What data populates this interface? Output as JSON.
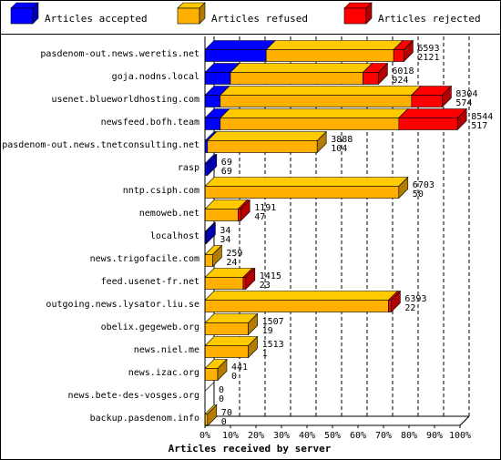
{
  "chart_data": {
    "type": "bar",
    "orientation": "horizontal",
    "stacked": true,
    "legend_position": "top",
    "xlabel": "Articles received by server",
    "x_tick_labels": [
      "0%",
      "10%",
      "20%",
      "30%",
      "40%",
      "50%",
      "60%",
      "70%",
      "80%",
      "90%",
      "100%"
    ],
    "xlim": [
      0,
      100
    ],
    "grid": true,
    "series": [
      {
        "name": "Articles accepted",
        "color": "#0000ff"
      },
      {
        "name": "Articles refused",
        "color": "#ffb000"
      },
      {
        "name": "Articles rejected",
        "color": "#ff0000"
      }
    ],
    "categories": [
      "pasdenom-out.news.weretis.net",
      "goja.nodns.local",
      "usenet.blueworldhosting.com",
      "newsfeed.bofh.team",
      "pasdenom-out.news.tnetconsulting.net",
      "rasp",
      "nntp.csiph.com",
      "nemoweb.net",
      "localhost",
      "news.trigofacile.com",
      "feed.usenet-fr.net",
      "outgoing.news.lysator.liu.se",
      "obelix.gegeweb.org",
      "news.niel.me",
      "news.izac.org",
      "news.bete-des-vosges.org",
      "backup.pasdenom.info"
    ],
    "rows": [
      {
        "total": "6593",
        "second": "2121",
        "accepted": 24,
        "refused": 50,
        "rejected": 4
      },
      {
        "total": "6018",
        "second": "924",
        "accepted": 10,
        "refused": 52,
        "rejected": 6
      },
      {
        "total": "8304",
        "second": "574",
        "accepted": 6,
        "refused": 75,
        "rejected": 12
      },
      {
        "total": "8544",
        "second": "517",
        "accepted": 6,
        "refused": 70,
        "rejected": 23
      },
      {
        "total": "3888",
        "second": "104",
        "accepted": 1,
        "refused": 43,
        "rejected": 0
      },
      {
        "total": "69",
        "second": "69",
        "accepted": 1,
        "refused": 0,
        "rejected": 0
      },
      {
        "total": "6703",
        "second": "50",
        "accepted": 0,
        "refused": 76,
        "rejected": 0
      },
      {
        "total": "1191",
        "second": "47",
        "accepted": 0,
        "refused": 13,
        "rejected": 1
      },
      {
        "total": "34",
        "second": "34",
        "accepted": 0.5,
        "refused": 0,
        "rejected": 0
      },
      {
        "total": "259",
        "second": "24",
        "accepted": 0,
        "refused": 3,
        "rejected": 0
      },
      {
        "total": "1415",
        "second": "23",
        "accepted": 0,
        "refused": 15,
        "rejected": 1
      },
      {
        "total": "6393",
        "second": "22",
        "accepted": 0,
        "refused": 72,
        "rejected": 1
      },
      {
        "total": "1507",
        "second": "19",
        "accepted": 0,
        "refused": 17,
        "rejected": 0
      },
      {
        "total": "1513",
        "second": "1",
        "accepted": 0,
        "refused": 17,
        "rejected": 0
      },
      {
        "total": "441",
        "second": "0",
        "accepted": 0,
        "refused": 5,
        "rejected": 0
      },
      {
        "total": "0",
        "second": "0",
        "accepted": 0,
        "refused": 0,
        "rejected": 0
      },
      {
        "total": "70",
        "second": "0",
        "accepted": 0,
        "refused": 1,
        "rejected": 0
      }
    ]
  }
}
